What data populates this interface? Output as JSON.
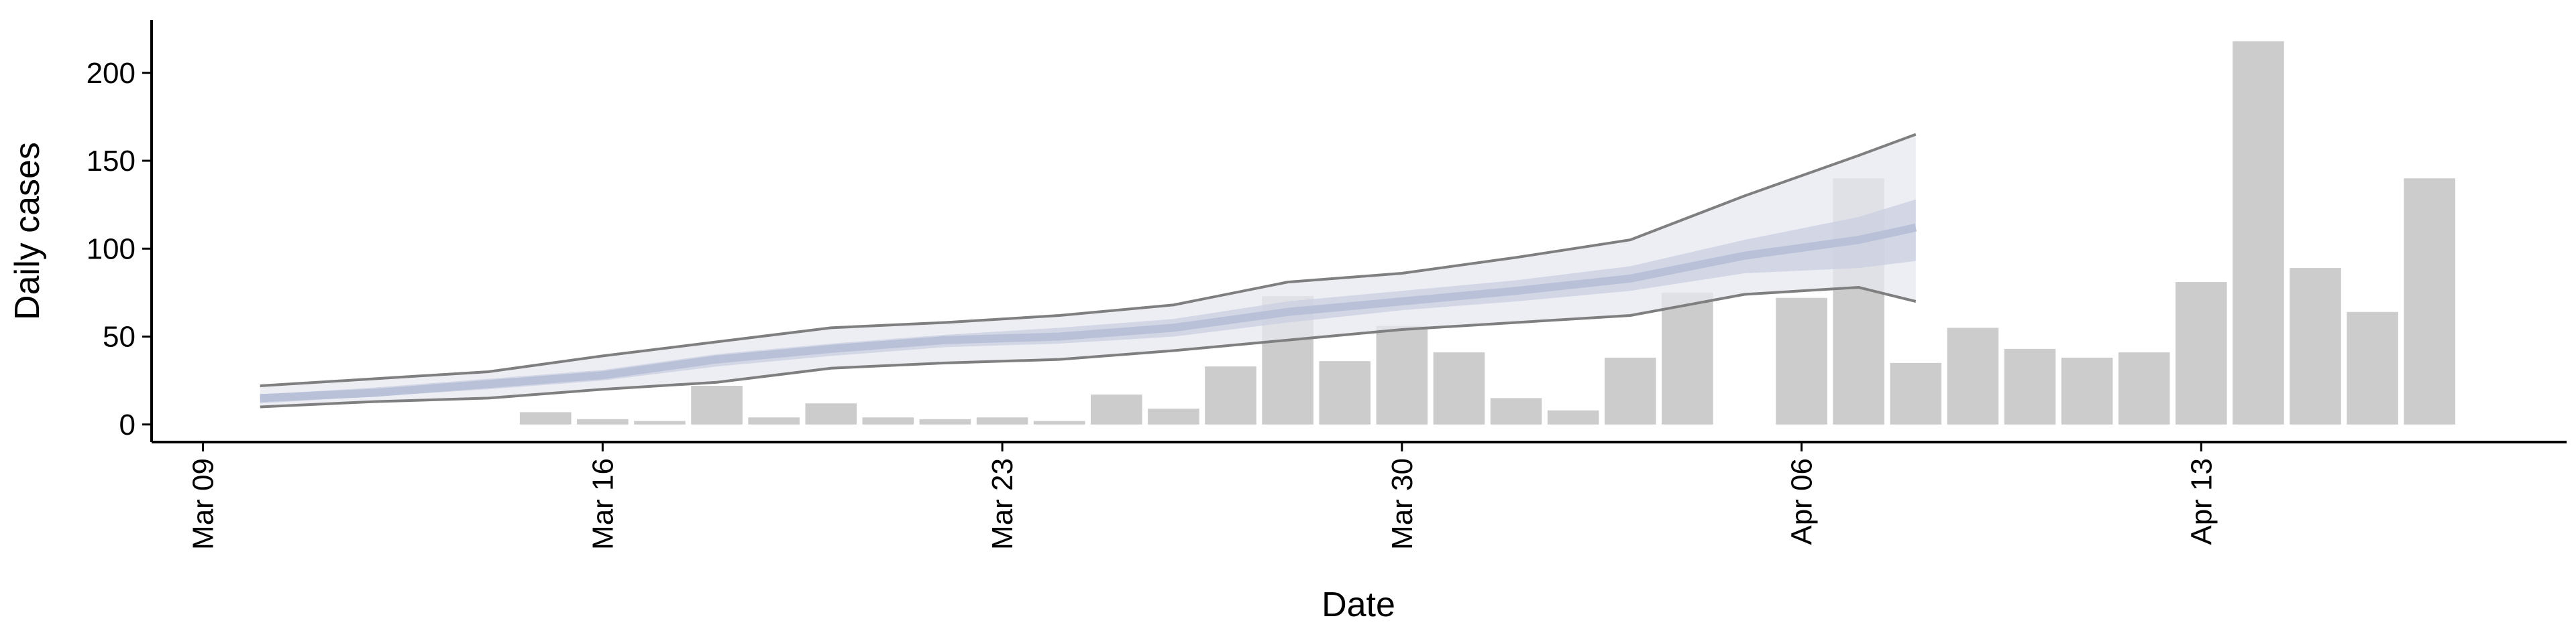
{
  "chart_data": {
    "type": "bar",
    "x_label": "Date",
    "y_label": "Daily cases",
    "x": [
      6,
      7,
      8,
      9,
      10,
      11,
      12,
      13,
      14,
      15,
      16,
      17,
      18,
      19,
      20,
      21,
      22,
      23,
      24,
      25,
      26,
      28,
      29,
      30,
      31,
      32,
      33,
      34,
      35,
      36,
      37,
      38,
      39
    ],
    "values": [
      7,
      3,
      2,
      22,
      4,
      12,
      4,
      3,
      4,
      2,
      17,
      9,
      33,
      73,
      36,
      56,
      41,
      15,
      8,
      38,
      75,
      72,
      140,
      35,
      55,
      43,
      38,
      41,
      81,
      218,
      89,
      64,
      140
    ],
    "color": "#cccccc",
    "band": {
      "x": [
        1,
        3,
        5,
        7,
        9,
        11,
        13,
        15,
        17,
        19,
        21,
        23,
        25,
        27,
        29,
        30
      ],
      "upper": [
        22,
        26,
        30,
        39,
        47,
        55,
        58,
        62,
        68,
        81,
        86,
        95,
        105,
        130,
        153,
        165
      ],
      "lower": [
        10,
        13,
        15,
        20,
        24,
        32,
        35,
        37,
        42,
        48,
        54,
        58,
        62,
        74,
        78,
        70
      ],
      "inner_upper": [
        17,
        21,
        26,
        31,
        40,
        46,
        51,
        55,
        60,
        70,
        76,
        82,
        90,
        105,
        118,
        128
      ],
      "inner_lower": [
        12,
        16,
        20,
        25,
        33,
        39,
        44,
        46,
        50,
        58,
        65,
        70,
        76,
        86,
        89,
        93
      ],
      "median": [
        15,
        18,
        23,
        28,
        37,
        43,
        48,
        50,
        55,
        64,
        70,
        76,
        83,
        96,
        105,
        112
      ],
      "outer_color": "#e6e8f0",
      "inner_color": "#c9cee0",
      "median_color": "#b9c1d9",
      "line_color": "#7f7f7f"
    },
    "xlim": [
      -0.9,
      41.4
    ],
    "xticks": [
      {
        "value": 0,
        "label": "Mar 09"
      },
      {
        "value": 7,
        "label": "Mar 16"
      },
      {
        "value": 14,
        "label": "Mar 23"
      },
      {
        "value": 21,
        "label": "Mar 30"
      },
      {
        "value": 28,
        "label": "Apr 06"
      },
      {
        "value": 35,
        "label": "Apr 13"
      }
    ],
    "ylim": [
      -10,
      230
    ],
    "yticks": [
      0,
      50,
      100,
      150,
      200
    ]
  }
}
